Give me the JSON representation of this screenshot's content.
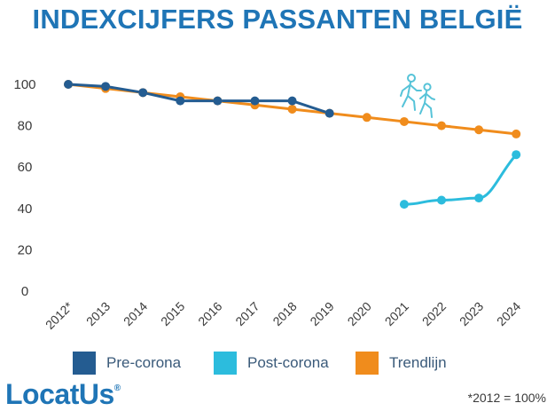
{
  "title": "INDEXCIJFERS PASSANTEN BELGIË",
  "footnote": "*2012 = 100%",
  "logo": {
    "text": "LocatUs",
    "mark": "®"
  },
  "colors": {
    "pre": "#245c91",
    "post": "#2cbcdd",
    "trend": "#f08c1c",
    "title": "#1f75b6",
    "icon": "#56c3d8"
  },
  "legend": [
    {
      "label": "Pre-corona",
      "color": "#245c91"
    },
    {
      "label": "Post-corona",
      "color": "#2cbcdd"
    },
    {
      "label": "Trendlijn",
      "color": "#f08c1c"
    }
  ],
  "icons": [
    "walking-people-icon"
  ],
  "chart_data": {
    "type": "line",
    "title": "INDEXCIJFERS PASSANTEN BELGIË",
    "categories": [
      "2012*",
      "2013",
      "2014",
      "2015",
      "2016",
      "2017",
      "2018",
      "2019",
      "2020",
      "2021",
      "2022",
      "2023",
      "2024"
    ],
    "yticks": [
      0,
      20,
      40,
      60,
      80,
      100
    ],
    "ylim": [
      0,
      110
    ],
    "grid": false,
    "legend_position": "bottom",
    "series": [
      {
        "name": "Pre-corona",
        "color": "#245c91",
        "values": [
          100,
          99,
          96,
          92,
          92,
          92,
          92,
          86,
          null,
          null,
          null,
          null,
          null
        ]
      },
      {
        "name": "Post-corona",
        "color": "#2cbcdd",
        "values": [
          null,
          null,
          null,
          null,
          null,
          null,
          null,
          null,
          null,
          42,
          44,
          45,
          66
        ]
      },
      {
        "name": "Trendlijn",
        "color": "#f08c1c",
        "values": [
          100,
          98,
          96,
          94,
          92,
          90,
          88,
          86,
          84,
          82,
          80,
          78,
          76
        ]
      }
    ]
  }
}
